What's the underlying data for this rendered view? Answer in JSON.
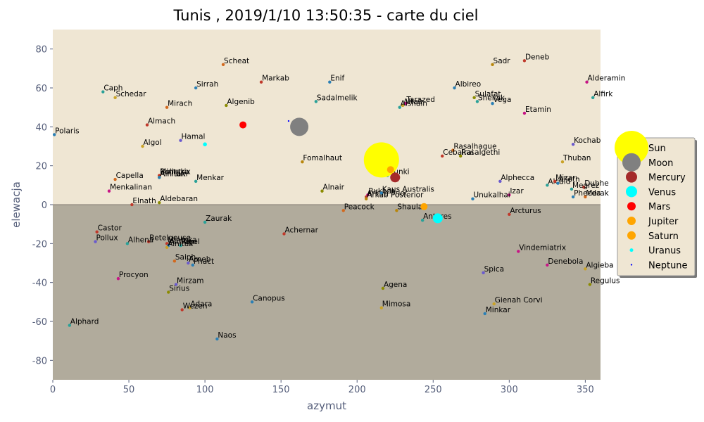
{
  "chart_data": {
    "type": "scatter",
    "title": "Tunis , 2019/1/10 13:50:35 - carte du ciel",
    "xlabel": "azymut",
    "ylabel": "elewacja",
    "xlim": [
      0,
      360
    ],
    "ylim": [
      -90,
      90
    ],
    "xticks": [
      0,
      50,
      100,
      150,
      200,
      250,
      300,
      350
    ],
    "yticks": [
      -80,
      -60,
      -40,
      -20,
      0,
      20,
      40,
      60,
      80
    ],
    "colors": {
      "sky": "#efe6d3",
      "ground": "#b1ab9c",
      "horizon": "#908a7e",
      "legend_bg": "#efe6d3"
    },
    "stars": [
      {
        "name": "Polaris",
        "az": 1,
        "el": 36,
        "color": "#2a7fb5"
      },
      {
        "name": "Caph",
        "az": 33,
        "el": 58,
        "color": "#2aa198"
      },
      {
        "name": "Schedar",
        "az": 41,
        "el": 55,
        "color": "#c9a227"
      },
      {
        "name": "Mirach",
        "az": 75,
        "el": 50,
        "color": "#d2691e"
      },
      {
        "name": "Almach",
        "az": 62,
        "el": 41,
        "color": "#c0392b"
      },
      {
        "name": "Hamal",
        "az": 84,
        "el": 33,
        "color": "#6a5acd"
      },
      {
        "name": "Algol",
        "az": 59,
        "el": 30,
        "color": "#c9a227"
      },
      {
        "name": "Capella",
        "az": 41,
        "el": 13,
        "color": "#d2691e"
      },
      {
        "name": "Menkalinan",
        "az": 37,
        "el": 7,
        "color": "#c71585"
      },
      {
        "name": "Elnath",
        "az": 52,
        "el": 0,
        "color": "#c0392b"
      },
      {
        "name": "Aldebaran",
        "az": 70,
        "el": 1,
        "color": "#8b8b00"
      },
      {
        "name": "Bellatrix",
        "az": 70,
        "el": 15,
        "color": "#b8860b"
      },
      {
        "name": "Mintaka",
        "az": 70,
        "el": 15,
        "color": "#c0392b"
      },
      {
        "name": "Alnilam",
        "az": 70,
        "el": 14,
        "color": "#8b8b00"
      },
      {
        "name": "Alnitak",
        "az": 70,
        "el": 14,
        "color": "#2a7fb5"
      },
      {
        "name": "Menkar",
        "az": 94,
        "el": 12,
        "color": "#2aa198"
      },
      {
        "name": "Sirrah",
        "az": 94,
        "el": 60,
        "color": "#2a7fb5"
      },
      {
        "name": "Scheat",
        "az": 112,
        "el": 72,
        "color": "#d2691e"
      },
      {
        "name": "Markab",
        "az": 137,
        "el": 63,
        "color": "#c0392b"
      },
      {
        "name": "Algenib",
        "az": 114,
        "el": 51,
        "color": "#8b8b00"
      },
      {
        "name": "Enif",
        "az": 182,
        "el": 63,
        "color": "#2a7fb5"
      },
      {
        "name": "Sadalmelik",
        "az": 173,
        "el": 53,
        "color": "#2aa198"
      },
      {
        "name": "Fomalhaut",
        "az": 164,
        "el": 22,
        "color": "#b8860b"
      },
      {
        "name": "Alnair",
        "az": 177,
        "el": 7,
        "color": "#8b8b00"
      },
      {
        "name": "Peacock",
        "az": 191,
        "el": -3,
        "color": "#d2691e"
      },
      {
        "name": "Rukbat",
        "az": 207,
        "el": 5,
        "color": "#c71585"
      },
      {
        "name": "Arkab Prior",
        "az": 206,
        "el": 4,
        "color": "#c0392b"
      },
      {
        "name": "Arkab Posterior",
        "az": 206,
        "el": 3,
        "color": "#b8860b"
      },
      {
        "name": "Kaus Australis",
        "az": 216,
        "el": 6,
        "color": "#2a7fb5"
      },
      {
        "name": "Nunki",
        "az": 220,
        "el": 15,
        "color": "#2aa198"
      },
      {
        "name": "Shaula",
        "az": 226,
        "el": -3,
        "color": "#b8860b"
      },
      {
        "name": "Antares",
        "az": 243,
        "el": -8,
        "color": "#2aa198"
      },
      {
        "name": "Altair",
        "az": 230,
        "el": 51,
        "color": "#c9a227"
      },
      {
        "name": "Tarazed",
        "az": 232,
        "el": 52,
        "color": "#c71585"
      },
      {
        "name": "Alshain",
        "az": 228,
        "el": 50,
        "color": "#2aa198"
      },
      {
        "name": "Albireo",
        "az": 264,
        "el": 60,
        "color": "#2a7fb5"
      },
      {
        "name": "Sulafat",
        "az": 277,
        "el": 55,
        "color": "#8b8b00"
      },
      {
        "name": "Sheliak",
        "az": 279,
        "el": 53,
        "color": "#2aa198"
      },
      {
        "name": "Vega",
        "az": 289,
        "el": 52,
        "color": "#2a7fb5"
      },
      {
        "name": "Sadr",
        "az": 289,
        "el": 72,
        "color": "#b8860b"
      },
      {
        "name": "Deneb",
        "az": 310,
        "el": 74,
        "color": "#c0392b"
      },
      {
        "name": "Etamin",
        "az": 310,
        "el": 47,
        "color": "#c71585"
      },
      {
        "name": "Alderamin",
        "az": 351,
        "el": 63,
        "color": "#c71585"
      },
      {
        "name": "Alfirk",
        "az": 355,
        "el": 55,
        "color": "#2aa198"
      },
      {
        "name": "Rasalhague",
        "az": 263,
        "el": 28,
        "color": "#d2691e"
      },
      {
        "name": "Cebalrai",
        "az": 256,
        "el": 25,
        "color": "#c0392b"
      },
      {
        "name": "Rasalgethi",
        "az": 268,
        "el": 25,
        "color": "#8b8b00"
      },
      {
        "name": "Kochab",
        "az": 342,
        "el": 31,
        "color": "#6a5acd"
      },
      {
        "name": "Thuban",
        "az": 335,
        "el": 22,
        "color": "#c9a227"
      },
      {
        "name": "Alphecca",
        "az": 294,
        "el": 12,
        "color": "#6a5acd"
      },
      {
        "name": "Alcaid",
        "az": 325,
        "el": 10,
        "color": "#2aa198"
      },
      {
        "name": "Mizar",
        "az": 330,
        "el": 12,
        "color": "#c0392b"
      },
      {
        "name": "Alioth",
        "az": 332,
        "el": 11,
        "color": "#2a7fb5"
      },
      {
        "name": "Dubhe",
        "az": 349,
        "el": 9,
        "color": "#c0392b"
      },
      {
        "name": "Megrez",
        "az": 341,
        "el": 8,
        "color": "#2aa198"
      },
      {
        "name": "Phecda",
        "az": 342,
        "el": 4,
        "color": "#2a7fb5"
      },
      {
        "name": "Merak",
        "az": 350,
        "el": 4,
        "color": "#d2691e"
      },
      {
        "name": "Izar",
        "az": 300,
        "el": 5,
        "color": "#c71585"
      },
      {
        "name": "Unukalhai",
        "az": 276,
        "el": 3,
        "color": "#2a7fb5"
      },
      {
        "name": "Arcturus",
        "az": 300,
        "el": -5,
        "color": "#c0392b"
      },
      {
        "name": "Vindemiatrix",
        "az": 306,
        "el": -24,
        "color": "#c71585"
      },
      {
        "name": "Denebola",
        "az": 325,
        "el": -31,
        "color": "#c71585"
      },
      {
        "name": "Algieba",
        "az": 350,
        "el": -33,
        "color": "#c9a227"
      },
      {
        "name": "Regulus",
        "az": 353,
        "el": -41,
        "color": "#8b8b00"
      },
      {
        "name": "Spica",
        "az": 283,
        "el": -35,
        "color": "#6a5acd"
      },
      {
        "name": "Gienah Corvi",
        "az": 290,
        "el": -51,
        "color": "#c9a227"
      },
      {
        "name": "Minkar",
        "az": 284,
        "el": -56,
        "color": "#2a7fb5"
      },
      {
        "name": "Agena",
        "az": 217,
        "el": -43,
        "color": "#8b8b00"
      },
      {
        "name": "Mimosa",
        "az": 216,
        "el": -53,
        "color": "#c9a227"
      },
      {
        "name": "Achernar",
        "az": 152,
        "el": -15,
        "color": "#c0392b"
      },
      {
        "name": "Canopus",
        "az": 131,
        "el": -50,
        "color": "#2a7fb5"
      },
      {
        "name": "Naos",
        "az": 108,
        "el": -69,
        "color": "#2a7fb5"
      },
      {
        "name": "Zaurak",
        "az": 100,
        "el": -9,
        "color": "#2aa198"
      },
      {
        "name": "Rigel",
        "az": 84,
        "el": -21,
        "color": "#2aa198"
      },
      {
        "name": "Saiph",
        "az": 80,
        "el": -29,
        "color": "#d2691e"
      },
      {
        "name": "Arneb",
        "az": 89,
        "el": -30,
        "color": "#6a5acd"
      },
      {
        "name": "Phact",
        "az": 92,
        "el": -31,
        "color": "#2a7fb5"
      },
      {
        "name": "Mirzam",
        "az": 81,
        "el": -41,
        "color": "#6a5acd"
      },
      {
        "name": "Sirius",
        "az": 76,
        "el": -45,
        "color": "#8b8b00"
      },
      {
        "name": "Adara",
        "az": 90,
        "el": -53,
        "color": "#c9a227"
      },
      {
        "name": "Wezen",
        "az": 85,
        "el": -54,
        "color": "#c0392b"
      },
      {
        "name": "Betelgeuse",
        "az": 63,
        "el": -19,
        "color": "#c0392b"
      },
      {
        "name": "Alhena",
        "az": 49,
        "el": -20,
        "color": "#2aa198"
      },
      {
        "name": "Castor",
        "az": 29,
        "el": -14,
        "color": "#c0392b"
      },
      {
        "name": "Pollux",
        "az": 28,
        "el": -19,
        "color": "#6a5acd"
      },
      {
        "name": "Procyon",
        "az": 43,
        "el": -38,
        "color": "#c71585"
      },
      {
        "name": "Alphard",
        "az": 11,
        "el": -62,
        "color": "#2aa198"
      },
      {
        "name": "Mintaka",
        "az": 75,
        "el": -20,
        "color": "#c0392b"
      },
      {
        "name": "Alnilam",
        "az": 76,
        "el": -21,
        "color": "#2a7fb5"
      },
      {
        "name": "Alnitak",
        "az": 75,
        "el": -22,
        "color": "#c9a227"
      }
    ],
    "bodies": [
      {
        "name": "Sun",
        "az": 216,
        "el": 23,
        "color": "#ffff00",
        "legend_size": "large"
      },
      {
        "name": "Moon",
        "az": 162,
        "el": 40,
        "color": "#808080",
        "legend_size": "medium"
      },
      {
        "name": "Mercury",
        "az": 225,
        "el": 14,
        "color": "#a52a2a",
        "legend_size": "small"
      },
      {
        "name": "Venus",
        "az": 253,
        "el": -7,
        "color": "#00ffff",
        "legend_size": "small"
      },
      {
        "name": "Mars",
        "az": 125,
        "el": 41,
        "color": "#ff0000",
        "legend_size": "xsmall"
      },
      {
        "name": "Jupiter",
        "az": 244,
        "el": -1,
        "color": "#ffa500",
        "legend_size": "xsmall"
      },
      {
        "name": "Saturn",
        "az": 222,
        "el": 18,
        "color": "#ffa500",
        "legend_size": "xsmall"
      },
      {
        "name": "Uranus",
        "az": 100,
        "el": 31,
        "color": "#00ffff",
        "legend_size": "tiny"
      },
      {
        "name": "Neptune",
        "az": 155,
        "el": 43,
        "color": "#0000ff",
        "legend_size": "dot"
      }
    ]
  }
}
